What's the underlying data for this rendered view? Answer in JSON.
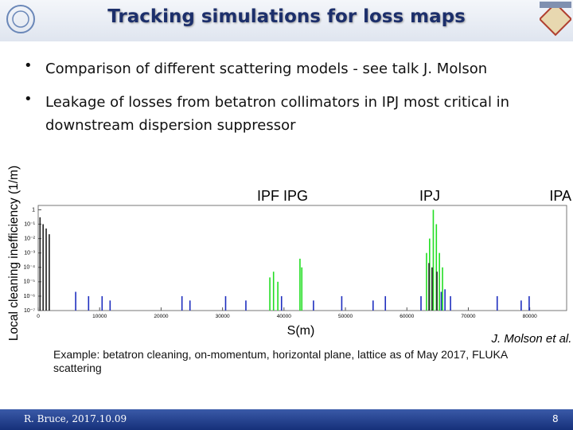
{
  "header": {
    "title": "Tracking simulations for loss maps"
  },
  "bullets": [
    "Comparison of different scattering models - see talk J. Molson",
    "Leakage of losses from betatron collimators in IPJ most critical in downstream dispersion suppressor"
  ],
  "chart_data": {
    "type": "bar",
    "ylabel": "Local cleaning inefficiency (1/m)",
    "xlabel": "S(m)",
    "annotations": [
      "IPF   IPG",
      "IPJ",
      "IPA"
    ],
    "xlim": [
      0,
      86000
    ],
    "xticks": [
      0,
      10000,
      20000,
      30000,
      40000,
      50000,
      60000,
      70000,
      80000
    ],
    "ylim": [
      1e-07,
      2
    ],
    "log_scale": true,
    "yticks": [
      1,
      {
        "value": 0.1,
        "label": "10⁻¹"
      },
      {
        "value": 0.01,
        "label": "10⁻²"
      },
      {
        "value": 0.001,
        "label": "10⁻³"
      },
      {
        "value": 0.0001,
        "label": "10⁻⁴"
      },
      {
        "value": 1e-05,
        "label": "10⁻⁵"
      },
      {
        "value": 1e-06,
        "label": "10⁻⁶"
      },
      {
        "value": 1e-07,
        "label": "10⁻⁷"
      }
    ],
    "series": [
      {
        "color": "#1f2fbf",
        "x": [
          6100,
          8200,
          10400,
          11700,
          23400,
          24700,
          30500,
          33800,
          39600,
          44800,
          49400,
          54500,
          56500,
          62300,
          65600,
          66200,
          67100,
          74700,
          78600,
          79900
        ],
        "values": [
          2e-06,
          1e-06,
          1e-06,
          5e-07,
          1e-06,
          5e-07,
          1e-06,
          5e-07,
          1e-06,
          5e-07,
          1e-06,
          5e-07,
          1e-06,
          1e-06,
          2e-06,
          3e-06,
          1e-06,
          1e-06,
          5e-07,
          1e-06
        ]
      },
      {
        "color": "#22dd22",
        "x": [
          37700,
          38300,
          39000,
          42600,
          42900,
          63200,
          63700,
          64300,
          64800,
          65300,
          65800
        ],
        "values": [
          2e-05,
          5e-05,
          1e-05,
          0.0004,
          0.0001,
          0.001,
          0.01,
          1,
          0.1,
          0.001,
          0.0001
        ]
      },
      {
        "color": "#222222",
        "x": [
          300,
          800,
          1300,
          1800,
          63600,
          64100,
          64900
        ],
        "values": [
          0.3,
          0.1,
          0.05,
          0.02,
          0.0002,
          0.0001,
          5e-05
        ]
      }
    ]
  },
  "credit": "J. Molson et al.",
  "caption": "Example: betatron cleaning, on-momentum, horizontal plane, lattice as of May 2017, FLUKA scattering",
  "footer": {
    "author": "R. Bruce, 2017.10.09",
    "page": "8"
  }
}
